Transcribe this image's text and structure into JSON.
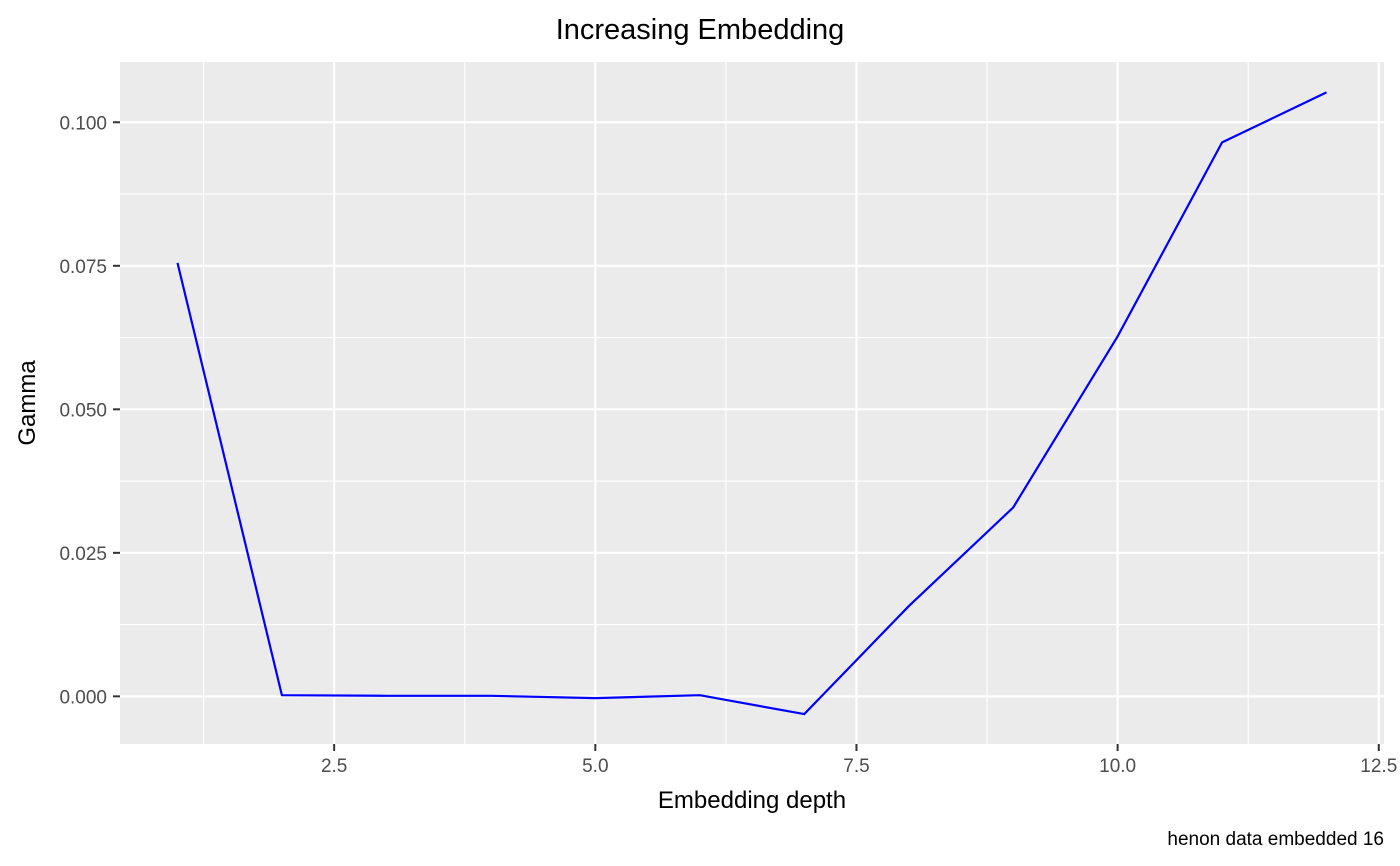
{
  "chart_data": {
    "type": "line",
    "title": "Increasing Embedding",
    "xlabel": "Embedding depth",
    "ylabel": "Gamma",
    "caption": "henon data embedded 16",
    "xlim": [
      0.45,
      12.55
    ],
    "ylim": [
      -0.0083,
      0.1105
    ],
    "x_ticks": [
      2.5,
      5.0,
      7.5,
      10.0,
      12.5
    ],
    "x_tick_labels": [
      "2.5",
      "5.0",
      "7.5",
      "10.0",
      "12.5"
    ],
    "y_ticks": [
      0.0,
      0.025,
      0.05,
      0.075,
      0.1
    ],
    "y_tick_labels": [
      "0.000",
      "0.025",
      "0.050",
      "0.075",
      "0.100"
    ],
    "grid": true,
    "panel_color": "#ebebeb",
    "grid_color": "#ffffff",
    "series": [
      {
        "color": "#0000ff",
        "x": [
          1,
          2,
          3,
          4,
          5,
          6,
          7,
          8,
          9,
          10,
          11,
          12
        ],
        "y": [
          0.0755,
          0.0002,
          0.0001,
          0.0001,
          -0.0003,
          0.0002,
          -0.0031,
          0.0157,
          0.0329,
          0.0627,
          0.0965,
          0.1052
        ]
      }
    ]
  }
}
